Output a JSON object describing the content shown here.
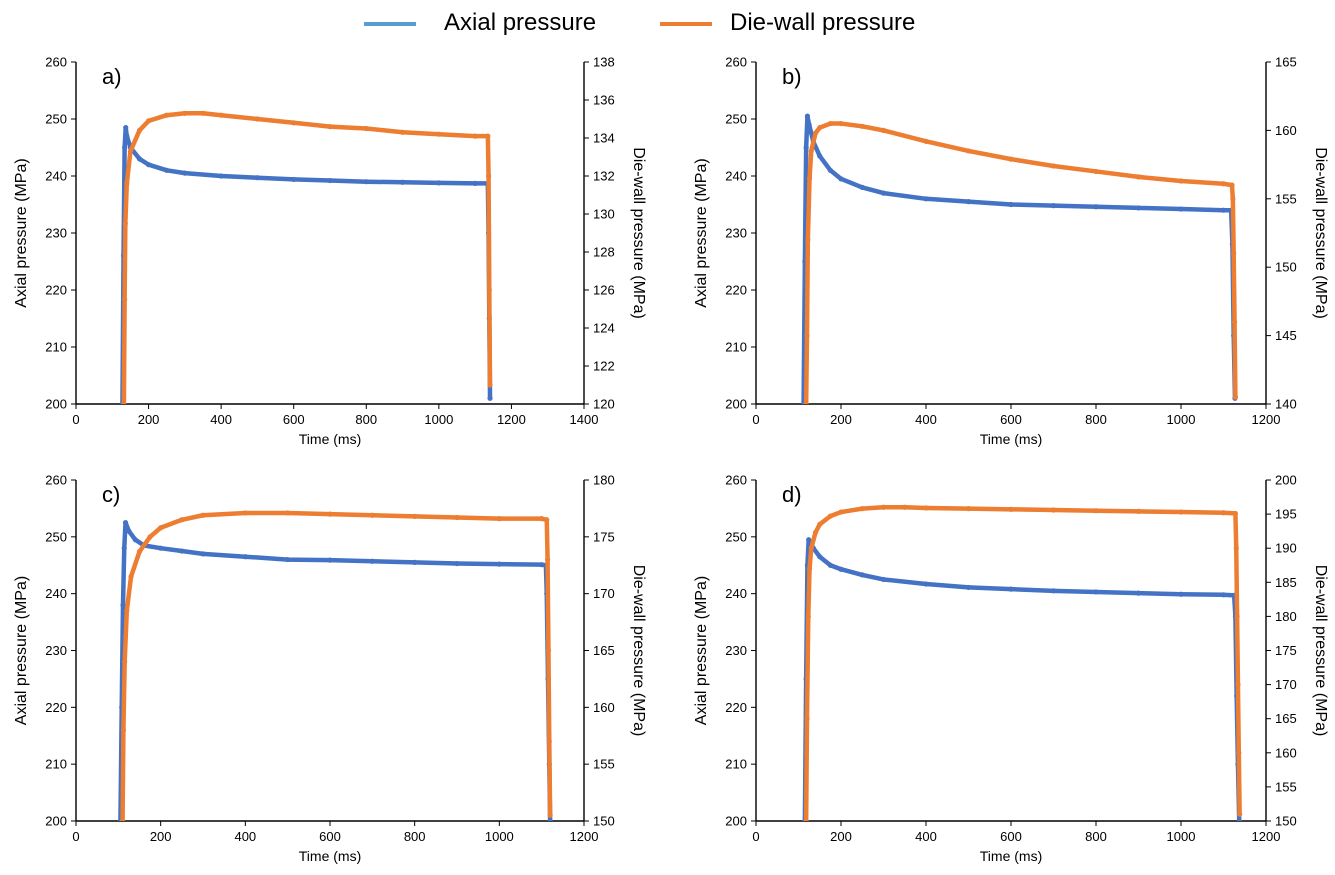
{
  "legend": {
    "items": [
      {
        "label": "Axial pressure",
        "color": "#4472C4",
        "legend_color": "#5B9BD5"
      },
      {
        "label": "Die-wall pressure",
        "color": "#ED7D31"
      }
    ]
  },
  "chart_data": [
    {
      "panel_label": "a)",
      "type": "scatter",
      "xlabel": "Time (ms)",
      "ylabel": "Axial pressure (MPa)",
      "y2label": "Die-wall pressure (MPa)",
      "xlim": [
        0,
        1400
      ],
      "xticks": [
        0,
        200,
        400,
        600,
        800,
        1000,
        1200,
        1400
      ],
      "ylim": [
        200,
        260
      ],
      "yticks": [
        200,
        210,
        220,
        230,
        240,
        250,
        260
      ],
      "y2lim": [
        120,
        138
      ],
      "y2ticks": [
        120,
        122,
        124,
        126,
        128,
        130,
        132,
        134,
        136,
        138
      ],
      "series": [
        {
          "name": "Axial pressure",
          "axis": "y",
          "color": "#4472C4",
          "x": [
            128,
            131,
            134,
            137,
            140,
            150,
            175,
            200,
            250,
            300,
            400,
            500,
            600,
            700,
            800,
            900,
            1000,
            1100,
            1135,
            1137,
            1139,
            1141
          ],
          "y": [
            200,
            226,
            245,
            248.5,
            247,
            245,
            243,
            242,
            241,
            240.5,
            240,
            239.7,
            239.4,
            239.2,
            239,
            238.9,
            238.8,
            238.7,
            238.7,
            230,
            215,
            201
          ]
        },
        {
          "name": "Die-wall pressure",
          "axis": "y2",
          "color": "#ED7D31",
          "x": [
            132,
            134,
            136,
            140,
            150,
            175,
            200,
            250,
            300,
            350,
            400,
            500,
            600,
            700,
            800,
            900,
            1000,
            1100,
            1135,
            1137,
            1139,
            1141
          ],
          "y": [
            120,
            125.5,
            129.5,
            131.6,
            133.3,
            134.4,
            134.9,
            135.2,
            135.3,
            135.3,
            135.2,
            135.0,
            134.8,
            134.6,
            134.5,
            134.3,
            134.2,
            134.1,
            134.1,
            132,
            126,
            121
          ]
        }
      ]
    },
    {
      "panel_label": "b)",
      "type": "scatter",
      "xlabel": "Time (ms)",
      "ylabel": "Axial pressure (MPa)",
      "y2label": "Die-wall pressure (MPa)",
      "xlim": [
        0,
        1200
      ],
      "xticks": [
        0,
        200,
        400,
        600,
        800,
        1000,
        1200
      ],
      "ylim": [
        200,
        260
      ],
      "yticks": [
        200,
        210,
        220,
        230,
        240,
        250,
        260
      ],
      "y2lim": [
        140,
        165
      ],
      "y2ticks": [
        140,
        145,
        150,
        155,
        160,
        165
      ],
      "series": [
        {
          "name": "Axial pressure",
          "axis": "y",
          "color": "#4472C4",
          "x": [
            112,
            115,
            118,
            121,
            125,
            135,
            150,
            175,
            200,
            250,
            300,
            400,
            500,
            600,
            700,
            800,
            900,
            1000,
            1100,
            1118,
            1121,
            1124,
            1127
          ],
          "y": [
            200,
            225,
            245,
            250.5,
            249,
            246,
            243.5,
            241,
            239.5,
            238,
            237,
            236,
            235.5,
            235,
            234.8,
            234.6,
            234.4,
            234.2,
            234,
            234,
            228,
            212,
            201
          ]
        },
        {
          "name": "Die-wall pressure",
          "axis": "y2",
          "color": "#ED7D31",
          "x": [
            118,
            120,
            122,
            126,
            130,
            140,
            150,
            175,
            200,
            250,
            300,
            400,
            500,
            600,
            700,
            800,
            900,
            1000,
            1100,
            1120,
            1122,
            1124,
            1126,
            1128
          ],
          "y": [
            140,
            145,
            152,
            156.5,
            158.5,
            159.8,
            160.2,
            160.5,
            160.5,
            160.3,
            160,
            159.2,
            158.5,
            157.9,
            157.4,
            157,
            156.6,
            156.3,
            156.1,
            156.0,
            155,
            151,
            146,
            140.5
          ]
        }
      ]
    },
    {
      "panel_label": "c)",
      "type": "scatter",
      "xlabel": "Time (ms)",
      "ylabel": "Axial pressure (MPa)",
      "y2label": "Die-wall pressure (MPa)",
      "xlim": [
        0,
        1200
      ],
      "xticks": [
        0,
        200,
        400,
        600,
        800,
        1000,
        1200
      ],
      "ylim": [
        200,
        260
      ],
      "yticks": [
        200,
        210,
        220,
        230,
        240,
        250,
        260
      ],
      "y2lim": [
        150,
        180
      ],
      "y2ticks": [
        150,
        155,
        160,
        165,
        170,
        175,
        180
      ],
      "series": [
        {
          "name": "Axial pressure",
          "axis": "y",
          "color": "#4472C4",
          "x": [
            105,
            108,
            111,
            114,
            117,
            125,
            140,
            160,
            200,
            250,
            300,
            400,
            500,
            600,
            700,
            800,
            900,
            1000,
            1100,
            1110,
            1112,
            1115,
            1118,
            1120
          ],
          "y": [
            200,
            220,
            238,
            248,
            252.5,
            251,
            249.5,
            248.5,
            248,
            247.5,
            247,
            246.5,
            246,
            245.9,
            245.7,
            245.5,
            245.3,
            245.2,
            245.1,
            245,
            240,
            225,
            210,
            200
          ]
        },
        {
          "name": "Die-wall pressure",
          "axis": "y2",
          "color": "#ED7D31",
          "x": [
            110,
            112,
            115,
            120,
            130,
            150,
            175,
            200,
            250,
            300,
            400,
            500,
            600,
            700,
            800,
            900,
            1000,
            1100,
            1112,
            1114,
            1116,
            1118,
            1120
          ],
          "y": [
            150,
            158,
            164,
            168.5,
            171.5,
            173.7,
            175,
            175.8,
            176.5,
            176.9,
            177.1,
            177.1,
            177.0,
            176.9,
            176.8,
            176.7,
            176.6,
            176.6,
            176.5,
            173,
            165,
            157,
            150.5
          ]
        }
      ]
    },
    {
      "panel_label": "d)",
      "type": "scatter",
      "xlabel": "Time (ms)",
      "ylabel": "Axial pressure (MPa)",
      "y2label": "Die-wall pressure (MPa)",
      "xlim": [
        0,
        1200
      ],
      "xticks": [
        0,
        200,
        400,
        600,
        800,
        1000,
        1200
      ],
      "ylim": [
        200,
        260
      ],
      "yticks": [
        200,
        210,
        220,
        230,
        240,
        250,
        260
      ],
      "y2lim": [
        150,
        200
      ],
      "y2ticks": [
        150,
        155,
        160,
        165,
        170,
        175,
        180,
        185,
        190,
        195,
        200
      ],
      "series": [
        {
          "name": "Axial pressure",
          "axis": "y",
          "color": "#4472C4",
          "x": [
            115,
            118,
            121,
            124,
            128,
            135,
            150,
            175,
            200,
            250,
            300,
            400,
            500,
            600,
            700,
            800,
            900,
            1000,
            1100,
            1125,
            1128,
            1131,
            1134,
            1137
          ],
          "y": [
            200,
            225,
            245,
            249.5,
            249,
            248,
            246.5,
            245,
            244.3,
            243.3,
            242.5,
            241.7,
            241.1,
            240.8,
            240.5,
            240.3,
            240.1,
            239.9,
            239.8,
            239.7,
            236,
            222,
            210,
            200
          ]
        },
        {
          "name": "Die-wall pressure",
          "axis": "y2",
          "color": "#ED7D31",
          "x": [
            118,
            120,
            123,
            126,
            130,
            140,
            150,
            175,
            200,
            250,
            300,
            350,
            400,
            500,
            600,
            700,
            800,
            900,
            1000,
            1100,
            1128,
            1130,
            1132,
            1134,
            1136,
            1138
          ],
          "y": [
            150,
            165,
            180,
            187,
            190,
            192.3,
            193.5,
            194.7,
            195.3,
            195.8,
            196.0,
            196.0,
            195.9,
            195.8,
            195.7,
            195.6,
            195.5,
            195.4,
            195.3,
            195.2,
            195.1,
            190,
            180,
            170,
            160,
            151
          ]
        }
      ]
    }
  ]
}
